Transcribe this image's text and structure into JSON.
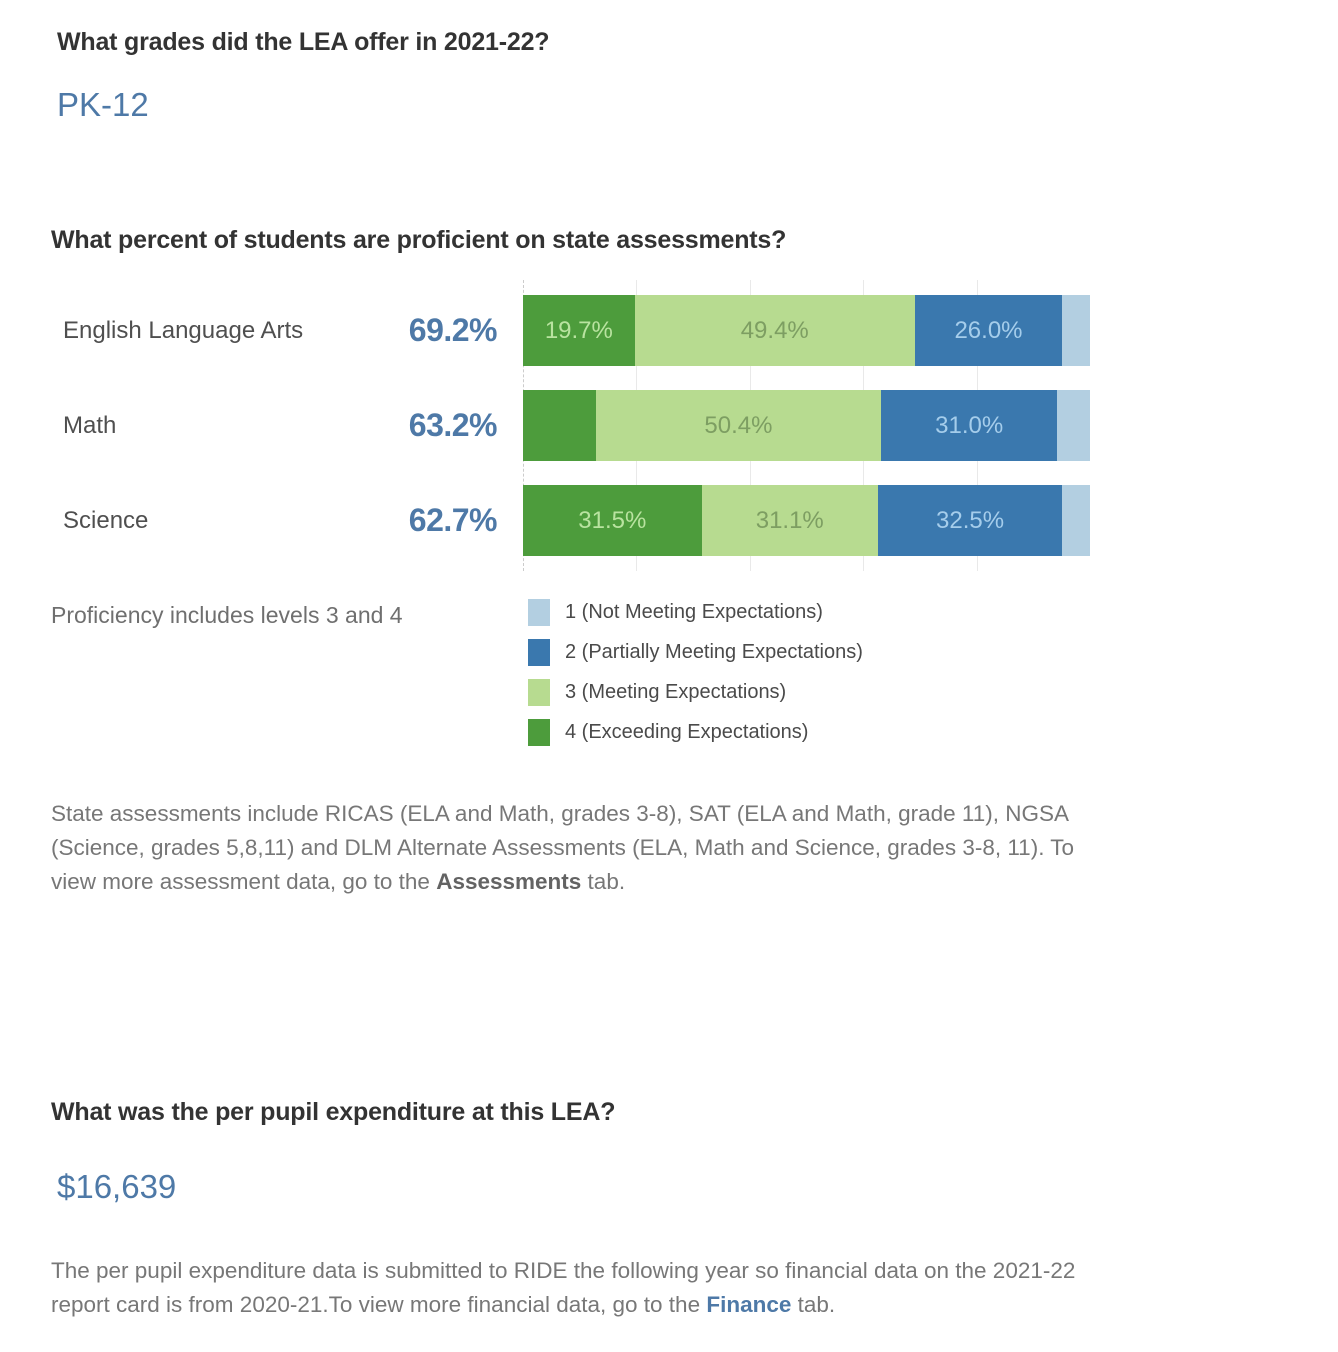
{
  "page": {
    "q1": {
      "question": "What grades did the LEA offer in 2021-22?",
      "answer": "PK-12"
    },
    "q2": {
      "question": "What percent of students are proficient on state assessments?",
      "proficiency_note": "Proficiency includes levels 3 and 4",
      "footnote": {
        "pre": "State assessments include RICAS (ELA and Math, grades 3-8), SAT (ELA and Math, grade 11), NGSA (Science, grades 5,8,11) and DLM Alternate Assessments (ELA, Math and Science, grades 3-8, 11). To view more assessment data, go to the ",
        "bold": "Assessments",
        "post": " tab."
      }
    },
    "q3": {
      "question": "What was the per pupil expenditure at this LEA?",
      "answer": "$16,639",
      "footnote": {
        "pre": "The per pupil expenditure data is submitted to RIDE the following year so financial data on the 2021-22 report card is from 2020-21.To view more financial data, go to the ",
        "bold": "Finance",
        "post": " tab."
      }
    }
  },
  "chart_data": {
    "type": "bar",
    "subtype": "horizontal-stacked",
    "title": "What percent of students are proficient on state assessments?",
    "categories": [
      "English Language Arts",
      "Math",
      "Science"
    ],
    "proficiency_totals": [
      69.2,
      63.2,
      62.7
    ],
    "totals_display": [
      "69.2%",
      "63.2%",
      "62.7%"
    ],
    "series": [
      {
        "level": 4,
        "name": "4 (Exceeding Expectations)",
        "color": "#4d9c3c",
        "label_color": "#b9e3a0",
        "values": [
          19.7,
          12.8,
          31.5
        ],
        "labels": [
          "19.7%",
          "",
          "31.5%"
        ]
      },
      {
        "level": 3,
        "name": "3 (Meeting Expectations)",
        "color": "#b7db90",
        "label_color": "#7d9e62",
        "values": [
          49.4,
          50.4,
          31.1
        ],
        "labels": [
          "49.4%",
          "50.4%",
          "31.1%"
        ]
      },
      {
        "level": 2,
        "name": "2 (Partially Meeting Expectations)",
        "color": "#3a78ae",
        "label_color": "#a5cdeb",
        "values": [
          26.0,
          31.0,
          32.5
        ],
        "labels": [
          "26.0%",
          "31.0%",
          "32.5%"
        ]
      },
      {
        "level": 1,
        "name": "1 (Not Meeting Expectations)",
        "color": "#b3cfe1",
        "label_color": "#ffffff",
        "values": [
          4.9,
          5.8,
          4.9
        ],
        "labels": [
          "",
          "",
          ""
        ]
      }
    ],
    "xlabel": "",
    "ylabel": "",
    "xlim": [
      0,
      100
    ],
    "grid": true,
    "gridlines_at": [
      20,
      40,
      60,
      80
    ],
    "legend_position": "bottom-right"
  },
  "legend": {
    "items": [
      {
        "label": "1 (Not Meeting Expectations)",
        "color": "#b3cfe1"
      },
      {
        "label": "2 (Partially Meeting Expectations)",
        "color": "#3a78ae"
      },
      {
        "label": "3 (Meeting Expectations)",
        "color": "#b7db90"
      },
      {
        "label": "4 (Exceeding Expectations)",
        "color": "#4d9c3c"
      }
    ]
  },
  "colors": {
    "heading": "#333333",
    "accent_blue": "#4e79a7",
    "row_label_gray": "#4f4f4f",
    "note_gray": "#6f6f6f",
    "paragraph_gray": "#777777",
    "gridline": "#e9e9e9"
  }
}
